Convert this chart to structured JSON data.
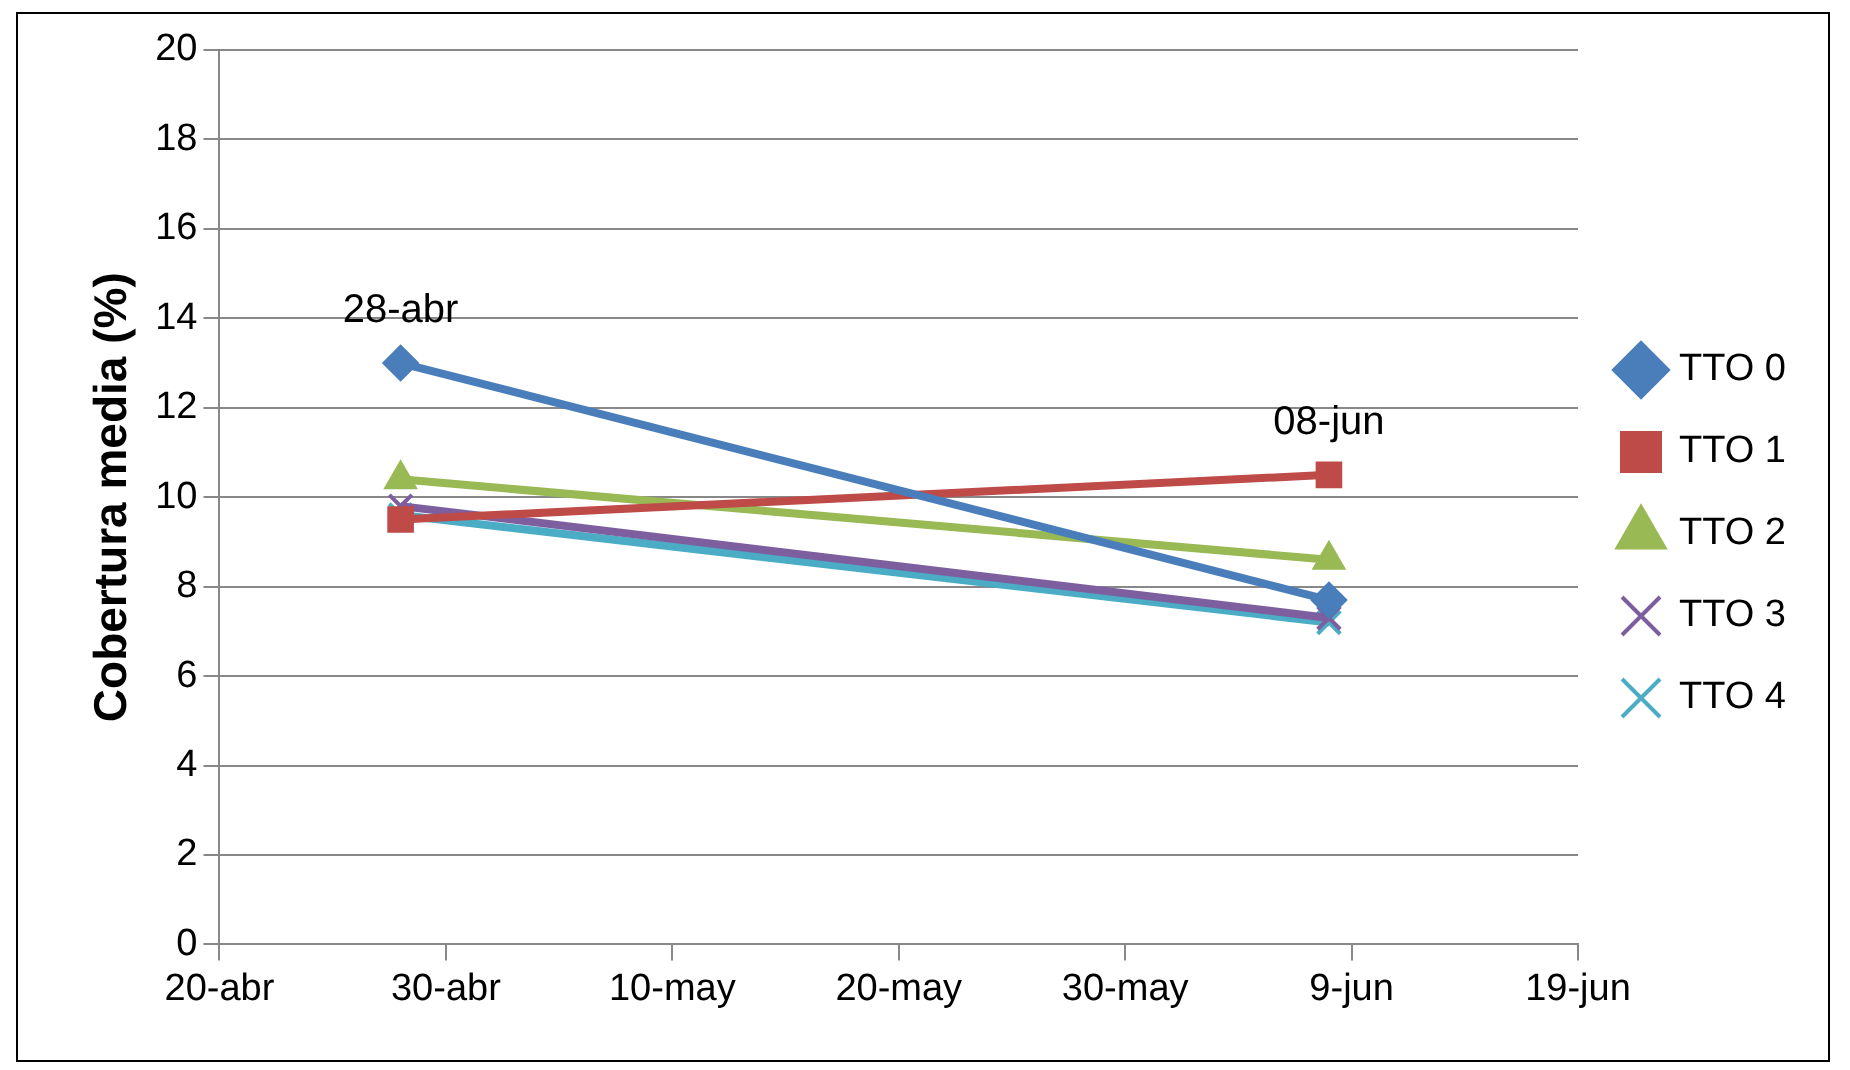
{
  "chart_data": {
    "type": "line",
    "ylabel": "Cobertura media (%)",
    "x": [
      "--04-28",
      "--06-08"
    ],
    "series": [
      {
        "name": "TTO 0",
        "color": "#4a7ebb",
        "marker": "diamond",
        "values": [
          13.0,
          7.7
        ]
      },
      {
        "name": "TTO 1",
        "color": "#be4b48",
        "marker": "square",
        "values": [
          9.5,
          10.5
        ]
      },
      {
        "name": "TTO 2",
        "color": "#98b954",
        "marker": "triangle",
        "values": [
          10.4,
          8.6
        ]
      },
      {
        "name": "TTO 3",
        "color": "#7d5fa0",
        "marker": "cross",
        "values": [
          9.8,
          7.3
        ]
      },
      {
        "name": "TTO 4",
        "color": "#4bacc6",
        "marker": "cross",
        "values": [
          9.6,
          7.2
        ]
      }
    ],
    "xlim": [
      "--04-20",
      "--06-19"
    ],
    "xticks": [
      {
        "value": "--04-20",
        "label": "20-abr"
      },
      {
        "value": "--04-30",
        "label": "30-abr"
      },
      {
        "value": "--05-10",
        "label": "10-may"
      },
      {
        "value": "--05-20",
        "label": "20-may"
      },
      {
        "value": "--05-30",
        "label": "30-may"
      },
      {
        "value": "--06-09",
        "label": "9-jun"
      },
      {
        "value": "--06-19",
        "label": "19-jun"
      }
    ],
    "ylim": [
      0,
      20
    ],
    "yticks": [
      0,
      2,
      4,
      6,
      8,
      10,
      12,
      14,
      16,
      18,
      20
    ],
    "annotations": [
      {
        "text": "28-abr",
        "x": "--04-28",
        "y": 13.0
      },
      {
        "text": "08-jun",
        "x": "--06-08",
        "y": 10.5
      }
    ],
    "grid": "y",
    "legend": "right",
    "line_style": "solid"
  }
}
